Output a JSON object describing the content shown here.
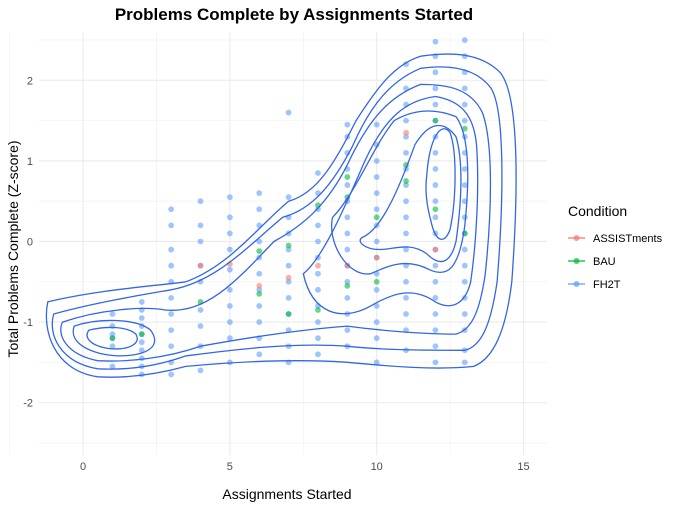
{
  "chart_data": {
    "type": "scatter",
    "title": "Problems Complete by Assignments Started",
    "xlabel": "Assignments Started",
    "ylabel": "Total Problems Complete (Z-score)",
    "xlim": [
      -1.5,
      15.8
    ],
    "ylim": [
      -2.65,
      2.6
    ],
    "xticks": [
      0,
      5,
      10,
      15
    ],
    "yticks": [
      -2,
      -1,
      0,
      1,
      2
    ],
    "grid": true,
    "legend": {
      "title": "Condition",
      "position": "right",
      "entries": [
        {
          "name": "ASSISTments",
          "color": "#F8766D"
        },
        {
          "name": "BAU",
          "color": "#00BA38"
        },
        {
          "name": "FH2T",
          "color": "#619CFF"
        }
      ]
    },
    "series": [
      {
        "name": "ASSISTments",
        "color": "#F8766D",
        "points": [
          [
            4,
            -0.3
          ],
          [
            5,
            -0.28
          ],
          [
            6,
            -0.55
          ],
          [
            7,
            -0.45
          ],
          [
            8,
            -0.3
          ],
          [
            9,
            -0.3
          ],
          [
            10,
            -0.2
          ],
          [
            11,
            1.35
          ],
          [
            12,
            -0.1
          ]
        ]
      },
      {
        "name": "BAU",
        "color": "#00BA38",
        "points": [
          [
            1,
            -1.2
          ],
          [
            2,
            -1.15
          ],
          [
            4,
            -0.75
          ],
          [
            6,
            -0.65
          ],
          [
            6,
            -0.12
          ],
          [
            7,
            -0.05
          ],
          [
            7,
            -0.9
          ],
          [
            8,
            0.45
          ],
          [
            8,
            -0.85
          ],
          [
            9,
            0.8
          ],
          [
            9,
            0.55
          ],
          [
            9,
            -0.55
          ],
          [
            10,
            0.3
          ],
          [
            10,
            -0.5
          ],
          [
            11,
            0.95
          ],
          [
            11,
            0.75
          ],
          [
            12,
            0.4
          ],
          [
            12,
            1.5
          ],
          [
            13,
            0.1
          ],
          [
            13,
            1.4
          ]
        ]
      },
      {
        "name": "FH2T",
        "color": "#619CFF",
        "points": [
          [
            1,
            -0.9
          ],
          [
            1,
            -1.05
          ],
          [
            1,
            -1.15
          ],
          [
            1,
            -1.2
          ],
          [
            1,
            -1.3
          ],
          [
            1,
            -1.55
          ],
          [
            2,
            -0.75
          ],
          [
            2,
            -0.85
          ],
          [
            2,
            -0.95
          ],
          [
            2,
            -1.05
          ],
          [
            2,
            -1.15
          ],
          [
            2,
            -1.25
          ],
          [
            2,
            -1.35
          ],
          [
            2,
            -1.45
          ],
          [
            2,
            -1.55
          ],
          [
            2,
            -1.65
          ],
          [
            3,
            0.4
          ],
          [
            3,
            0.2
          ],
          [
            3,
            -0.1
          ],
          [
            3,
            -0.3
          ],
          [
            3,
            -0.5
          ],
          [
            3,
            -0.7
          ],
          [
            3,
            -0.9
          ],
          [
            3,
            -1.1
          ],
          [
            3,
            -1.3
          ],
          [
            3,
            -1.5
          ],
          [
            3,
            -1.65
          ],
          [
            4,
            0.5
          ],
          [
            4,
            0.2
          ],
          [
            4,
            0.0
          ],
          [
            4,
            -0.3
          ],
          [
            4,
            -0.5
          ],
          [
            4,
            -0.85
          ],
          [
            4,
            -1.05
          ],
          [
            4,
            -1.3
          ],
          [
            4,
            -1.6
          ],
          [
            5,
            0.55
          ],
          [
            5,
            0.3
          ],
          [
            5,
            0.1
          ],
          [
            5,
            -0.1
          ],
          [
            5,
            -0.35
          ],
          [
            5,
            -0.6
          ],
          [
            5,
            -0.8
          ],
          [
            5,
            -1.0
          ],
          [
            5,
            -1.2
          ],
          [
            5,
            -1.5
          ],
          [
            6,
            0.6
          ],
          [
            6,
            0.4
          ],
          [
            6,
            0.2
          ],
          [
            6,
            0.0
          ],
          [
            6,
            -0.2
          ],
          [
            6,
            -0.4
          ],
          [
            6,
            -0.6
          ],
          [
            6,
            -0.8
          ],
          [
            6,
            -1.0
          ],
          [
            6,
            -1.2
          ],
          [
            6,
            -1.4
          ],
          [
            7,
            1.6
          ],
          [
            7,
            0.55
          ],
          [
            7,
            0.3
          ],
          [
            7,
            0.1
          ],
          [
            7,
            -0.1
          ],
          [
            7,
            -0.3
          ],
          [
            7,
            -0.5
          ],
          [
            7,
            -0.7
          ],
          [
            7,
            -0.9
          ],
          [
            7,
            -1.1
          ],
          [
            7,
            -1.3
          ],
          [
            7,
            -1.5
          ],
          [
            8,
            0.85
          ],
          [
            8,
            0.6
          ],
          [
            8,
            0.4
          ],
          [
            8,
            0.2
          ],
          [
            8,
            0.0
          ],
          [
            8,
            -0.2
          ],
          [
            8,
            -0.4
          ],
          [
            8,
            -0.6
          ],
          [
            8,
            -0.8
          ],
          [
            8,
            -1.0
          ],
          [
            8,
            -1.2
          ],
          [
            8,
            -1.4
          ],
          [
            9,
            1.45
          ],
          [
            9,
            1.3
          ],
          [
            9,
            1.1
          ],
          [
            9,
            0.9
          ],
          [
            9,
            0.7
          ],
          [
            9,
            0.5
          ],
          [
            9,
            0.3
          ],
          [
            9,
            0.1
          ],
          [
            9,
            -0.1
          ],
          [
            9,
            -0.3
          ],
          [
            9,
            -0.5
          ],
          [
            9,
            -0.7
          ],
          [
            9,
            -0.9
          ],
          [
            9,
            -1.1
          ],
          [
            9,
            -1.3
          ],
          [
            10,
            1.45
          ],
          [
            10,
            1.2
          ],
          [
            10,
            1.0
          ],
          [
            10,
            0.8
          ],
          [
            10,
            0.6
          ],
          [
            10,
            0.4
          ],
          [
            10,
            0.2
          ],
          [
            10,
            0.0
          ],
          [
            10,
            -0.2
          ],
          [
            10,
            -0.4
          ],
          [
            10,
            -0.6
          ],
          [
            10,
            -0.8
          ],
          [
            10,
            -1.0
          ],
          [
            10,
            -1.2
          ],
          [
            10,
            -1.5
          ],
          [
            11,
            2.2
          ],
          [
            11,
            1.9
          ],
          [
            11,
            1.7
          ],
          [
            11,
            1.5
          ],
          [
            11,
            1.3
          ],
          [
            11,
            1.1
          ],
          [
            11,
            0.9
          ],
          [
            11,
            0.7
          ],
          [
            11,
            0.5
          ],
          [
            11,
            0.3
          ],
          [
            11,
            0.1
          ],
          [
            11,
            -0.1
          ],
          [
            11,
            -0.3
          ],
          [
            11,
            -0.5
          ],
          [
            11,
            -0.7
          ],
          [
            11,
            -0.9
          ],
          [
            11,
            -1.1
          ],
          [
            11,
            -1.35
          ],
          [
            12,
            2.48
          ],
          [
            12,
            2.3
          ],
          [
            12,
            2.1
          ],
          [
            12,
            1.9
          ],
          [
            12,
            1.7
          ],
          [
            12,
            1.5
          ],
          [
            12,
            1.3
          ],
          [
            12,
            1.1
          ],
          [
            12,
            0.9
          ],
          [
            12,
            0.7
          ],
          [
            12,
            0.5
          ],
          [
            12,
            0.3
          ],
          [
            12,
            0.1
          ],
          [
            12,
            -0.1
          ],
          [
            12,
            -0.3
          ],
          [
            12,
            -0.5
          ],
          [
            12,
            -0.7
          ],
          [
            12,
            -0.9
          ],
          [
            12,
            -1.1
          ],
          [
            12,
            -1.3
          ],
          [
            12,
            -1.5
          ],
          [
            13,
            2.5
          ],
          [
            13,
            2.3
          ],
          [
            13,
            2.1
          ],
          [
            13,
            1.9
          ],
          [
            13,
            1.7
          ],
          [
            13,
            1.5
          ],
          [
            13,
            1.3
          ],
          [
            13,
            1.1
          ],
          [
            13,
            0.9
          ],
          [
            13,
            0.7
          ],
          [
            13,
            0.5
          ],
          [
            13,
            0.3
          ],
          [
            13,
            0.1
          ],
          [
            13,
            -0.1
          ],
          [
            13,
            -0.3
          ],
          [
            13,
            -0.5
          ],
          [
            13,
            -0.7
          ],
          [
            13,
            -0.9
          ],
          [
            13,
            -1.1
          ],
          [
            13,
            -1.35
          ],
          [
            13,
            -1.5
          ]
        ]
      }
    ],
    "density_contour_color": "#3366E6"
  }
}
